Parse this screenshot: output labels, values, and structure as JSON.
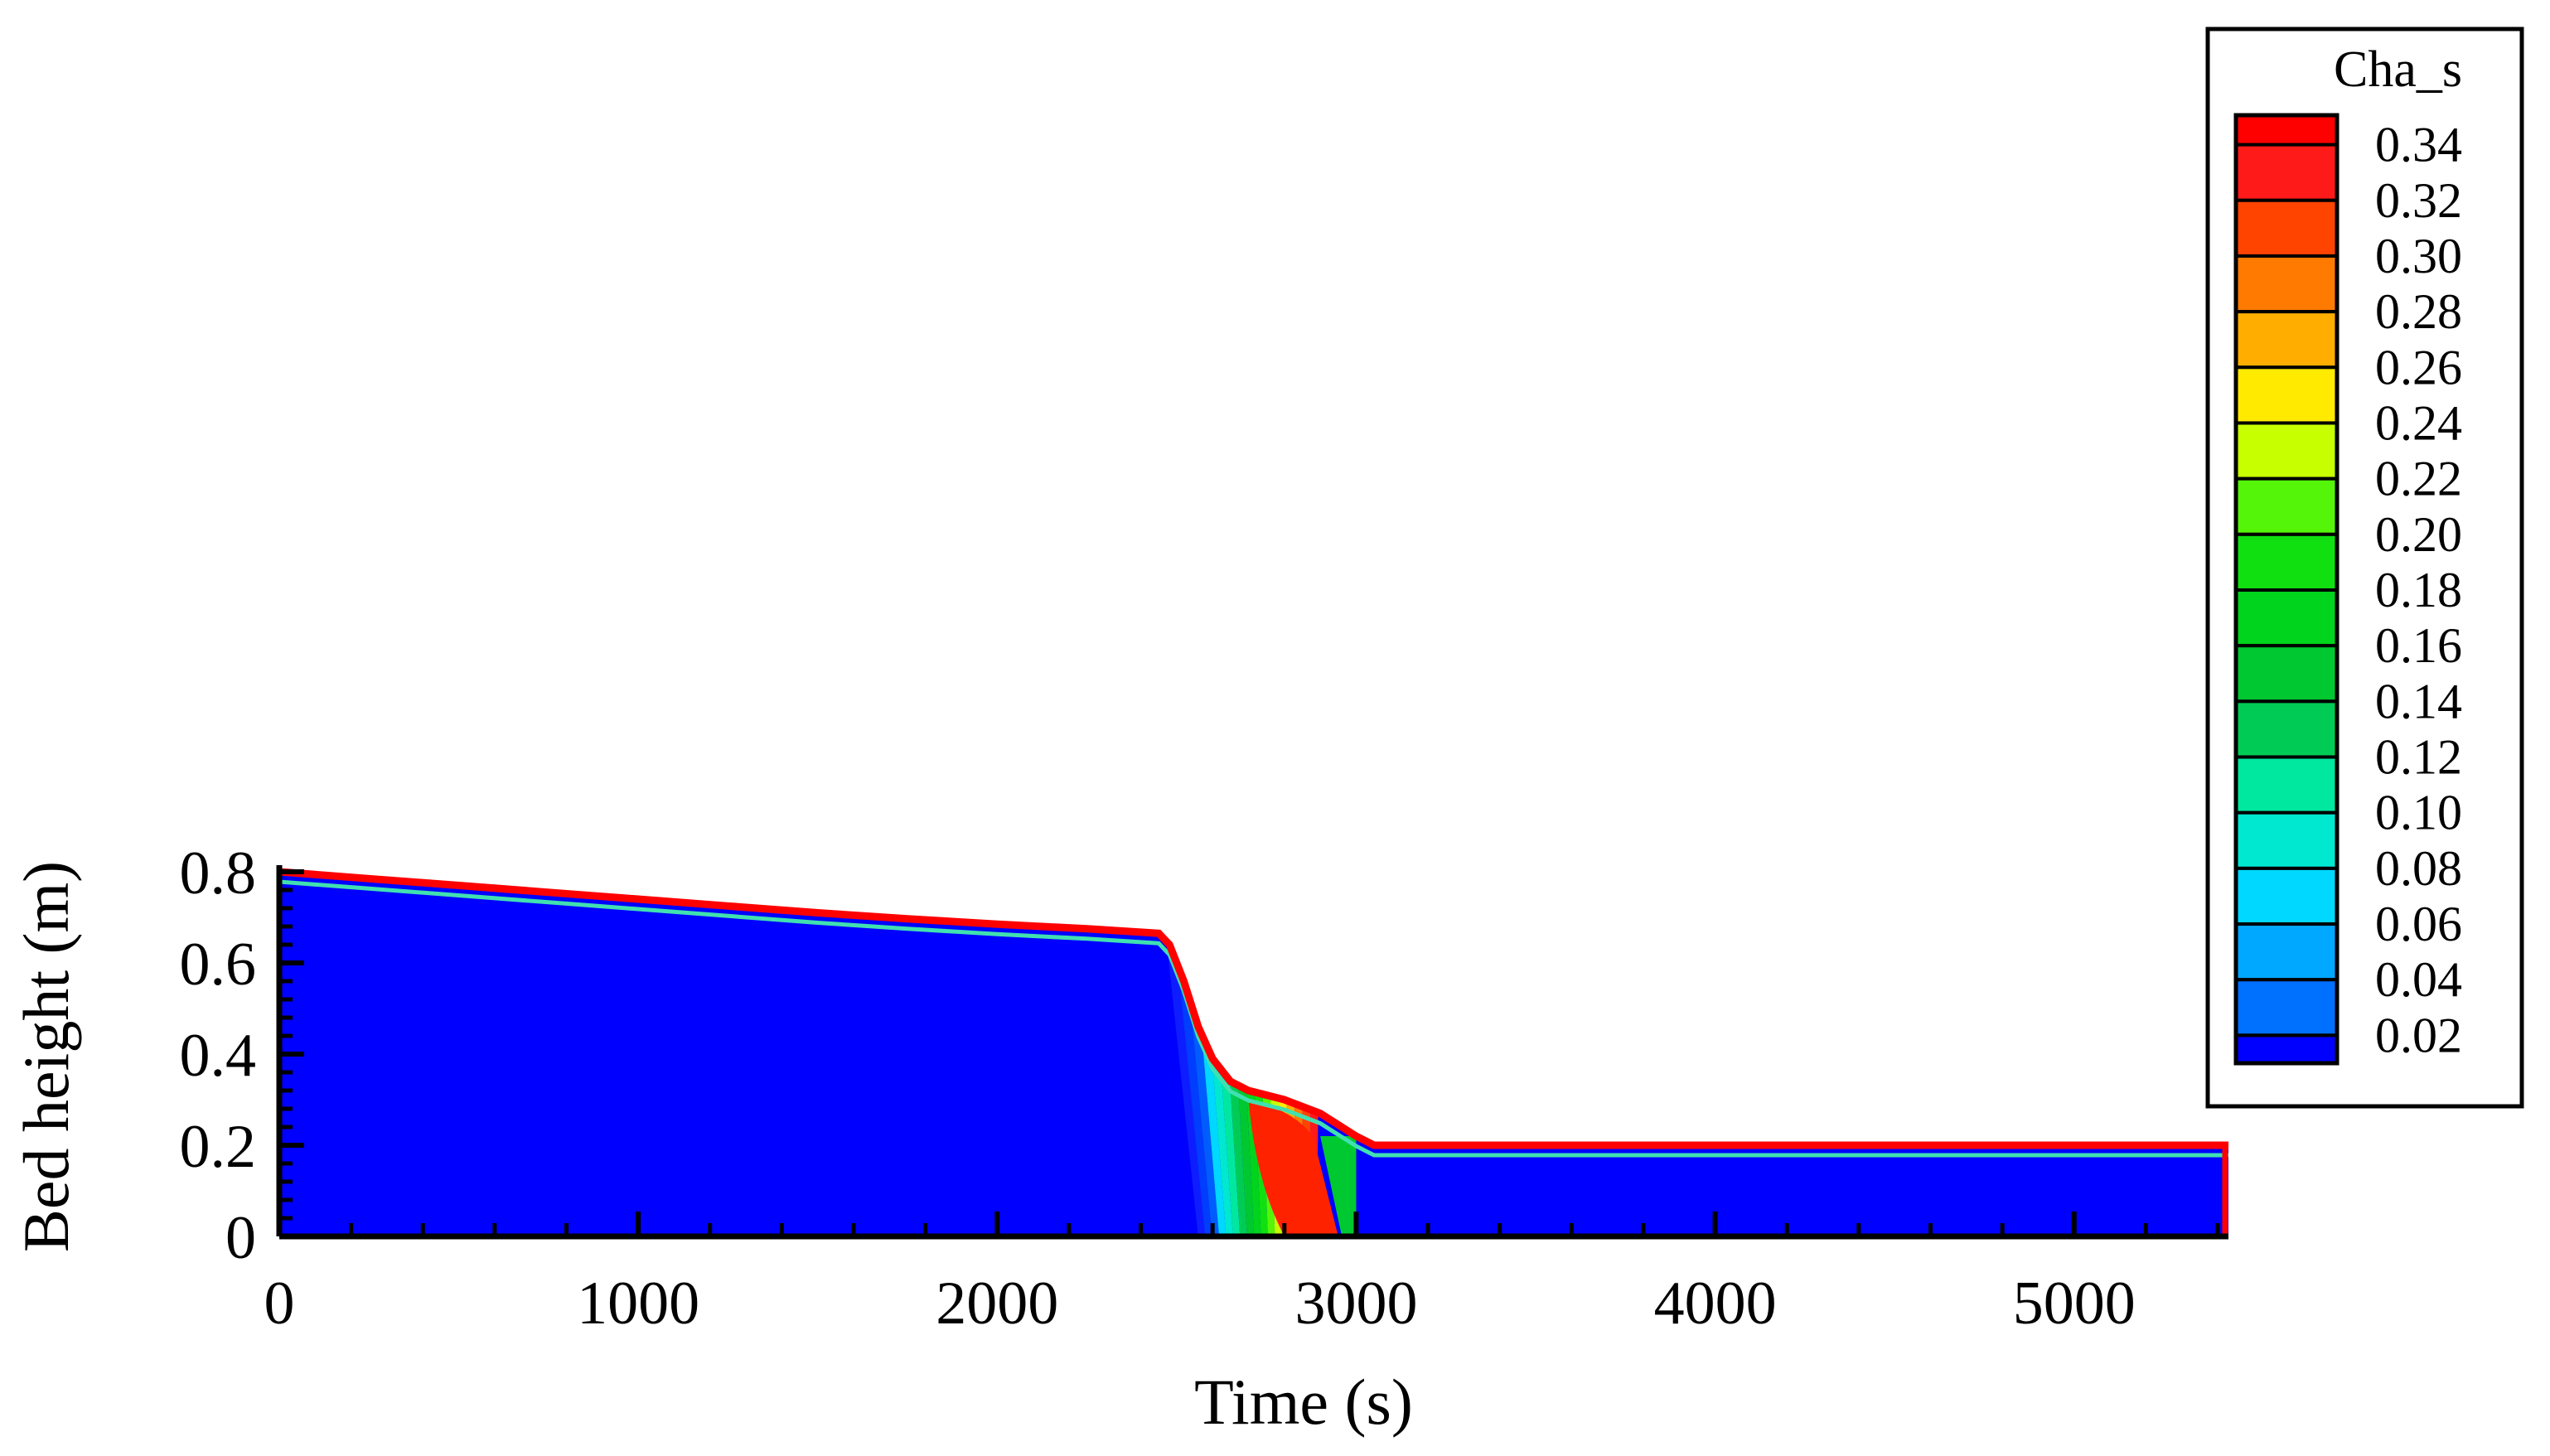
{
  "chart_data": {
    "type": "heatmap",
    "title": "",
    "xlabel": "Time (s)",
    "ylabel": "Bed height (m)",
    "xlim": [
      0,
      5430
    ],
    "ylim": [
      0,
      0.8
    ],
    "x_ticks": [
      {
        "value": 0,
        "label": "0"
      },
      {
        "value": 1000,
        "label": "1000"
      },
      {
        "value": 2000,
        "label": "2000"
      },
      {
        "value": 3000,
        "label": "3000"
      },
      {
        "value": 4000,
        "label": "4000"
      },
      {
        "value": 5000,
        "label": "5000"
      }
    ],
    "y_ticks": [
      {
        "value": 0,
        "label": "0"
      },
      {
        "value": 0.2,
        "label": "0.2"
      },
      {
        "value": 0.4,
        "label": "0.4"
      },
      {
        "value": 0.6,
        "label": "0.6"
      },
      {
        "value": 0.8,
        "label": "0.8"
      }
    ],
    "bed_surface": {
      "x": [
        0,
        250,
        500,
        750,
        1000,
        1250,
        1500,
        1750,
        2000,
        2250,
        2450,
        2480,
        2520,
        2560,
        2600,
        2650,
        2700,
        2800,
        2900,
        3000,
        3050,
        5430
      ],
      "y": [
        0.8,
        0.785,
        0.77,
        0.755,
        0.74,
        0.725,
        0.71,
        0.697,
        0.685,
        0.675,
        0.665,
        0.64,
        0.56,
        0.46,
        0.39,
        0.34,
        0.32,
        0.3,
        0.27,
        0.22,
        0.2,
        0.2
      ]
    },
    "colorbar": {
      "title": "Cha_s",
      "position": "right",
      "levels": [
        "0.34",
        "0.32",
        "0.30",
        "0.28",
        "0.26",
        "0.24",
        "0.22",
        "0.20",
        "0.18",
        "0.16",
        "0.14",
        "0.12",
        "0.10",
        "0.08",
        "0.06",
        "0.04",
        "0.02"
      ],
      "colors": [
        "#ff1a1a",
        "#ff4400",
        "#ff7a00",
        "#ffae00",
        "#ffea00",
        "#c8ff00",
        "#55f50a",
        "#10e010",
        "#00d41c",
        "#00c830",
        "#00cc55",
        "#00e8a0",
        "#00e8d0",
        "#00d8ff",
        "#00a8ff",
        "#0070ff",
        "#1a35ff"
      ],
      "top_color": "#ff0000",
      "base_color": "#0000ff"
    },
    "field_colors": {
      "bed": "#0000ff",
      "surface_crust": "#ff0000",
      "hot_core": "#ff2200"
    },
    "grid": false,
    "legend_placement": "top-right"
  }
}
